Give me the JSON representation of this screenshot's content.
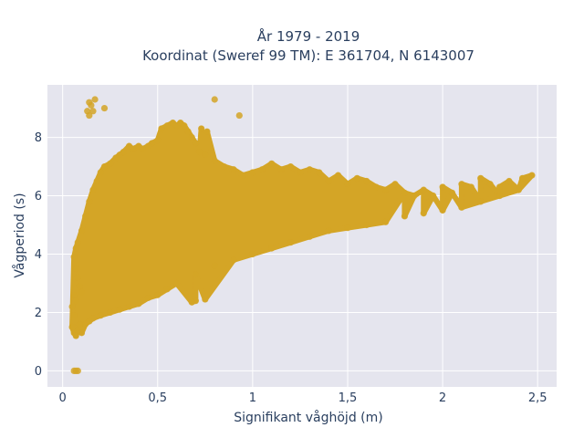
{
  "chart_data": {
    "type": "scatter",
    "title_line1": "År 1979 - 2019",
    "title_line2": "Koordinat (Sweref 99 TM): E 361704, N 6143007",
    "xlabel": "Signifikant våghöjd (m)",
    "ylabel": "Vågperiod (s)",
    "xlim": [
      -0.08,
      2.6
    ],
    "ylim": [
      -0.55,
      9.8
    ],
    "x_ticks": [
      {
        "value": 0,
        "label": "0"
      },
      {
        "value": 0.5,
        "label": "0,5"
      },
      {
        "value": 1,
        "label": "1"
      },
      {
        "value": 1.5,
        "label": "1,5"
      },
      {
        "value": 2,
        "label": "2"
      },
      {
        "value": 2.5,
        "label": "2,5"
      }
    ],
    "y_ticks": [
      {
        "value": 0,
        "label": "0"
      },
      {
        "value": 2,
        "label": "2"
      },
      {
        "value": 4,
        "label": "4"
      },
      {
        "value": 6,
        "label": "6"
      },
      {
        "value": 8,
        "label": "8"
      }
    ],
    "grid": true,
    "legend": false,
    "marker_color": "#d4a526",
    "plot_bg": "#e5e5ee",
    "points": [
      [
        0.05,
        1.5
      ],
      [
        0.06,
        1.3
      ],
      [
        0.07,
        1.2
      ],
      [
        0.08,
        1.4
      ],
      [
        0.09,
        1.6
      ],
      [
        0.1,
        1.3
      ],
      [
        0.12,
        1.6
      ],
      [
        0.14,
        1.7
      ],
      [
        0.16,
        1.8
      ],
      [
        0.2,
        1.9
      ],
      [
        0.25,
        2.0
      ],
      [
        0.3,
        2.1
      ],
      [
        0.35,
        2.2
      ],
      [
        0.4,
        2.3
      ],
      [
        0.45,
        2.5
      ],
      [
        0.5,
        2.6
      ],
      [
        0.55,
        2.8
      ],
      [
        0.6,
        3.0
      ],
      [
        0.7,
        3.3
      ],
      [
        0.8,
        3.6
      ],
      [
        0.9,
        3.8
      ],
      [
        1.0,
        4.0
      ],
      [
        1.1,
        4.2
      ],
      [
        1.2,
        4.4
      ],
      [
        1.3,
        4.6
      ],
      [
        1.4,
        4.8
      ],
      [
        1.5,
        4.9
      ],
      [
        1.6,
        5.0
      ],
      [
        1.7,
        5.1
      ],
      [
        1.8,
        5.3
      ],
      [
        1.9,
        5.4
      ],
      [
        2.0,
        5.5
      ],
      [
        2.1,
        5.6
      ],
      [
        2.2,
        5.8
      ],
      [
        2.3,
        6.0
      ],
      [
        2.4,
        6.2
      ],
      [
        2.47,
        6.7
      ],
      [
        2.42,
        6.6
      ],
      [
        2.35,
        6.5
      ],
      [
        2.3,
        6.3
      ],
      [
        2.25,
        6.4
      ],
      [
        2.2,
        6.6
      ],
      [
        2.15,
        6.3
      ],
      [
        2.1,
        6.4
      ],
      [
        2.05,
        6.1
      ],
      [
        2.0,
        6.3
      ],
      [
        1.95,
        6.0
      ],
      [
        1.9,
        6.2
      ],
      [
        1.85,
        6.0
      ],
      [
        1.8,
        6.1
      ],
      [
        1.75,
        6.4
      ],
      [
        1.7,
        6.2
      ],
      [
        1.65,
        6.3
      ],
      [
        1.6,
        6.5
      ],
      [
        1.55,
        6.6
      ],
      [
        1.5,
        6.4
      ],
      [
        1.45,
        6.7
      ],
      [
        1.4,
        6.5
      ],
      [
        1.35,
        6.8
      ],
      [
        1.3,
        6.9
      ],
      [
        1.25,
        6.8
      ],
      [
        1.2,
        7.0
      ],
      [
        1.15,
        6.9
      ],
      [
        1.1,
        7.1
      ],
      [
        1.05,
        6.9
      ],
      [
        1.0,
        6.8
      ],
      [
        0.95,
        6.7
      ],
      [
        0.9,
        6.9
      ],
      [
        0.85,
        7.0
      ],
      [
        0.8,
        7.2
      ],
      [
        0.75,
        7.4
      ],
      [
        0.72,
        7.5
      ],
      [
        0.7,
        7.8
      ],
      [
        0.68,
        8.0
      ],
      [
        0.66,
        8.2
      ],
      [
        0.64,
        8.4
      ],
      [
        0.62,
        8.5
      ],
      [
        0.6,
        8.4
      ],
      [
        0.58,
        8.5
      ],
      [
        0.55,
        8.4
      ],
      [
        0.52,
        8.3
      ],
      [
        0.5,
        7.9
      ],
      [
        0.47,
        7.8
      ],
      [
        0.45,
        7.7
      ],
      [
        0.42,
        7.6
      ],
      [
        0.4,
        7.7
      ],
      [
        0.37,
        7.6
      ],
      [
        0.35,
        7.7
      ],
      [
        0.32,
        7.5
      ],
      [
        0.3,
        7.4
      ],
      [
        0.28,
        7.3
      ],
      [
        0.25,
        7.1
      ],
      [
        0.22,
        7.0
      ],
      [
        0.2,
        6.8
      ],
      [
        0.18,
        6.5
      ],
      [
        0.16,
        6.2
      ],
      [
        0.14,
        5.8
      ],
      [
        0.12,
        5.3
      ],
      [
        0.1,
        4.8
      ],
      [
        0.08,
        4.4
      ],
      [
        0.07,
        4.2
      ],
      [
        0.06,
        3.9
      ],
      [
        0.07,
        3.5
      ],
      [
        0.08,
        3.2
      ],
      [
        0.09,
        2.9
      ],
      [
        0.1,
        2.7
      ],
      [
        0.06,
        2.6
      ],
      [
        0.07,
        2.4
      ],
      [
        0.05,
        2.2
      ],
      [
        0.06,
        1.9
      ],
      [
        0.07,
        0.0
      ],
      [
        0.08,
        0.0
      ],
      [
        0.06,
        0.0
      ],
      [
        0.14,
        9.2
      ],
      [
        0.17,
        9.3
      ],
      [
        0.15,
        9.1
      ],
      [
        0.13,
        8.9
      ],
      [
        0.16,
        8.9
      ],
      [
        0.22,
        9.0
      ],
      [
        0.14,
        8.75
      ],
      [
        0.8,
        9.3
      ],
      [
        0.93,
        8.75
      ],
      [
        0.73,
        8.3
      ],
      [
        0.76,
        8.2
      ],
      [
        0.68,
        2.35
      ],
      [
        0.75,
        2.45
      ],
      [
        0.7,
        2.4
      ]
    ]
  }
}
